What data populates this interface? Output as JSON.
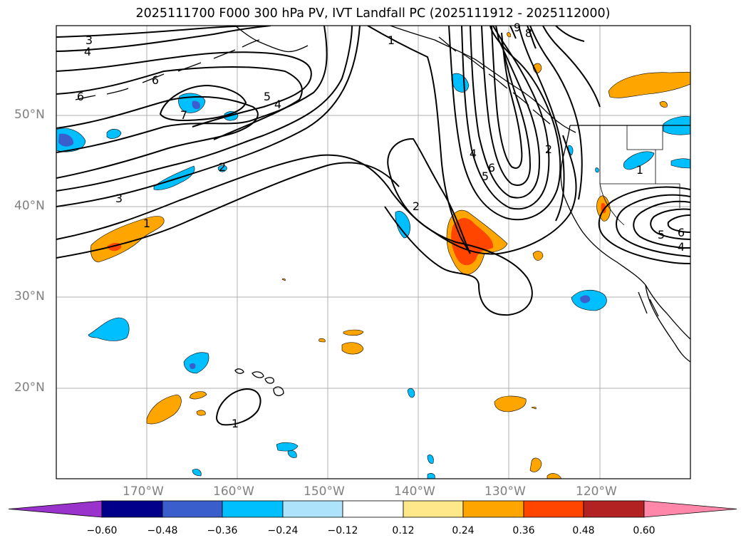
{
  "title": "2025111700 F000 300 hPa PV, IVT Landfall PC (2025111912 - 2025112000)",
  "lat_labels": [
    "50°N",
    "40°N",
    "30°N",
    "20°N"
  ],
  "lon_labels": [
    "170°W",
    "160°W",
    "150°W",
    "140°W",
    "130°W",
    "120°W"
  ],
  "contour_labels": [
    "3",
    "4",
    "6",
    "6",
    "7",
    "5",
    "4",
    "2",
    "3",
    "1",
    "1",
    "2",
    "4",
    "6",
    "5",
    "8",
    "9",
    "2",
    "1",
    "5",
    "6",
    "4",
    "1"
  ],
  "colorbar": {
    "tick_labels": [
      "−0.60",
      "−0.48",
      "−0.36",
      "−0.24",
      "−0.12",
      "0.12",
      "0.24",
      "0.36",
      "0.48",
      "0.60"
    ],
    "colors": [
      "#9933cc",
      "#00008b",
      "#3a5fcd",
      "#00bfff",
      "#aee4fb",
      "#ffffff",
      "#ffe88a",
      "#ffa500",
      "#ff4500",
      "#b22222",
      "#ff88aa"
    ]
  },
  "palette": {
    "negative_fill": "#00bfff",
    "negative_core": "#3a5fcd",
    "positive_fill": "#ffa500",
    "positive_core": "#ff4500"
  }
}
